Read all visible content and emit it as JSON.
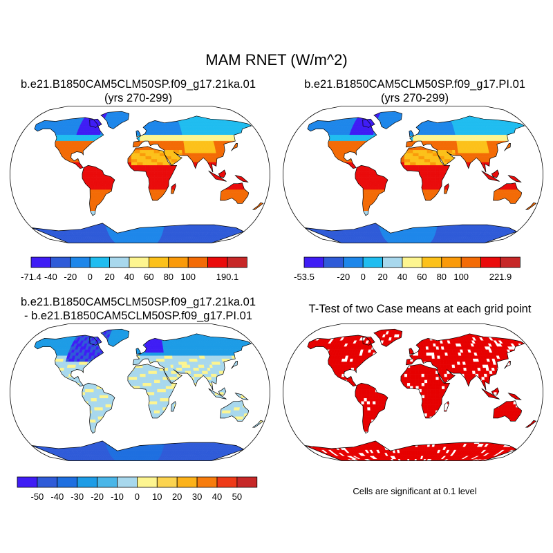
{
  "title": "MAM RNET (W/m^2)",
  "panels": [
    {
      "id": "p1",
      "title_line1": "b.e21.B1850CAM5CLM50SP.f09_g17.21ka.01",
      "title_line2": "(yrs 270-299)",
      "palette": "rnet",
      "colorbar": {
        "colors": [
          "#3f1df5",
          "#2f5bd8",
          "#1e87ea",
          "#20bdf0",
          "#a8d8ed",
          "#fdf590",
          "#fcc11a",
          "#fa9a0a",
          "#f36b06",
          "#ea0b0b",
          "#c72828"
        ],
        "labels": [
          "-71.4",
          "-40",
          "-20",
          "0",
          "20",
          "40",
          "60",
          "80",
          "100",
          "",
          "190.1"
        ]
      }
    },
    {
      "id": "p2",
      "title_line1": "b.e21.B1850CAM5CLM50SP.f09_g17.PI.01",
      "title_line2": "(yrs 270-299)",
      "palette": "rnet",
      "colorbar": {
        "colors": [
          "#3f1df5",
          "#2f5bd8",
          "#1e87ea",
          "#20bdf0",
          "#a8d8ed",
          "#fdf590",
          "#fcc11a",
          "#fa9a0a",
          "#f36b06",
          "#ea0b0b",
          "#c72828"
        ],
        "labels": [
          "-53.5",
          "",
          "-20",
          "0",
          "20",
          "40",
          "60",
          "80",
          "100",
          "",
          "221.9"
        ]
      }
    },
    {
      "id": "p3",
      "title_line1": "b.e21.B1850CAM5CLM50SP.f09_g17.21ka.01",
      "title_line2": "- b.e21.B1850CAM5CLM50SP.f09_g17.PI.01",
      "palette": "diff",
      "colorbar": {
        "colors": [
          "#3f1df5",
          "#2f5bd8",
          "#1e6fe0",
          "#1d9ce6",
          "#4ab6e8",
          "#a8d8ed",
          "#fdf590",
          "#fcd450",
          "#fcb21a",
          "#f77c0d",
          "#ee3a18",
          "#c72828"
        ],
        "labels": [
          "",
          "-50",
          "-40",
          "-30",
          "-20",
          "-10",
          "0",
          "10",
          "20",
          "30",
          "40",
          "50"
        ]
      }
    },
    {
      "id": "p4",
      "title_line1": "T-Test of two Case means at each grid point",
      "palette": "sig",
      "note": "Cells are significant at 0.1 level"
    }
  ],
  "colors": {
    "sig": "#e60000",
    "ocean": "#ffffff",
    "coast": "#000000"
  }
}
